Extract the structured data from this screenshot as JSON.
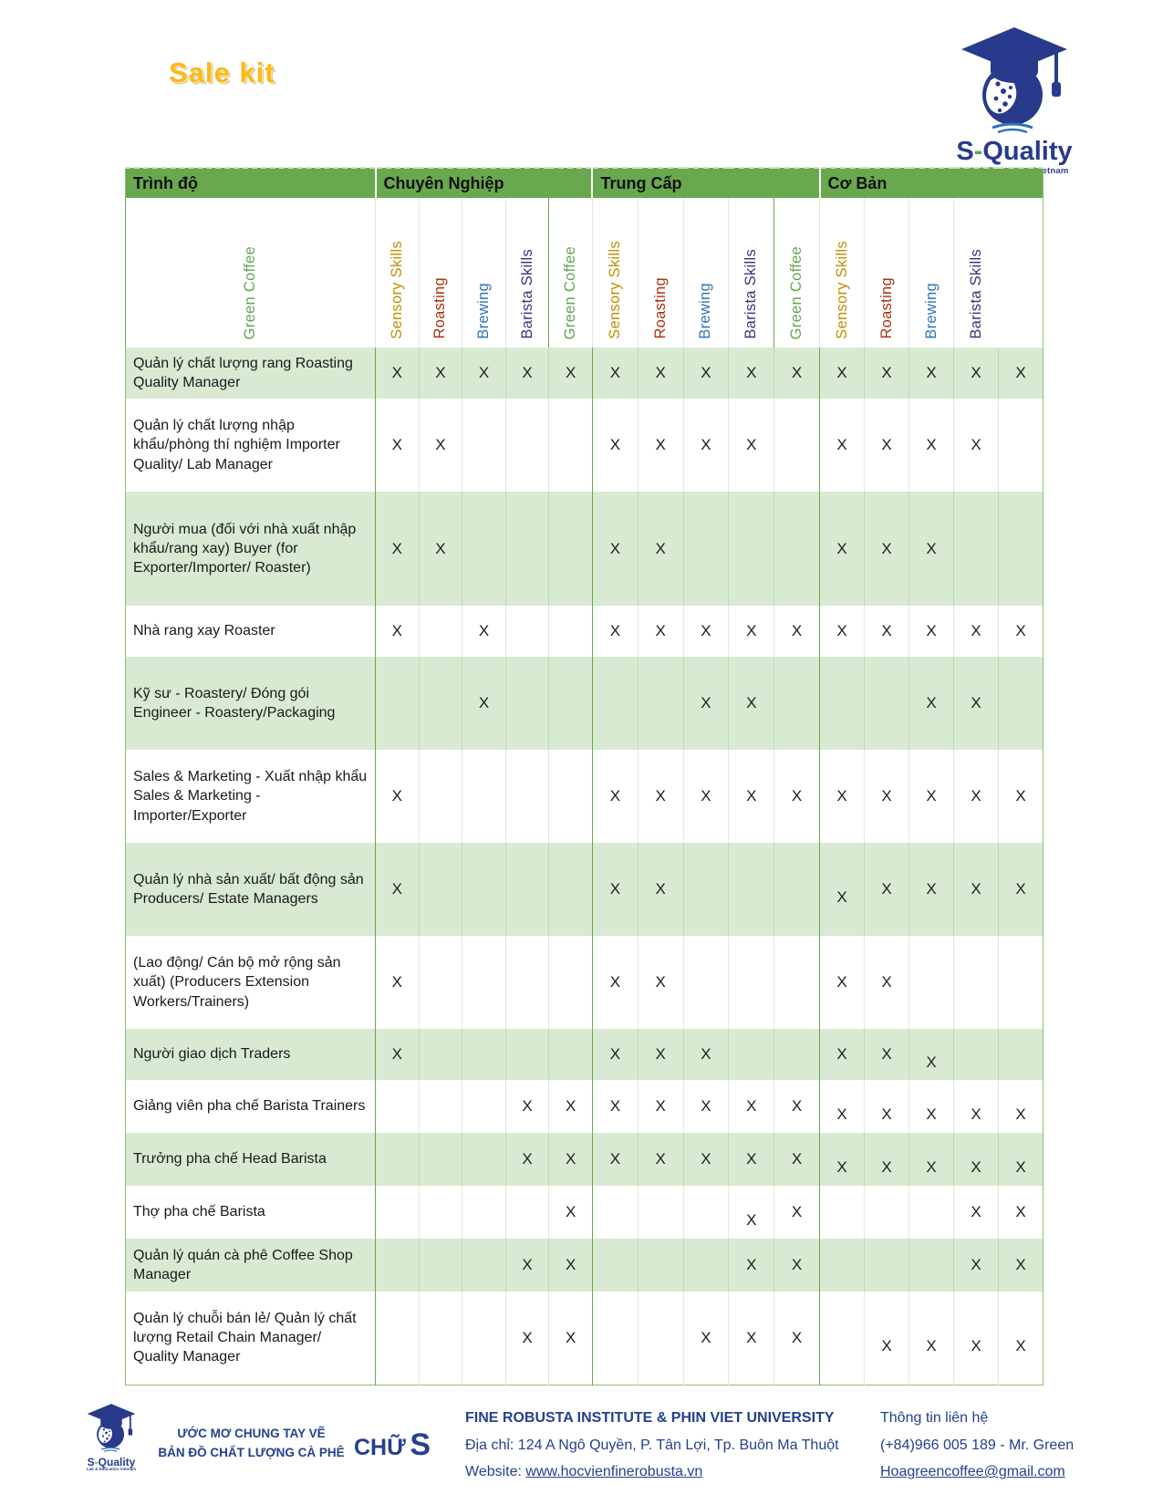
{
  "page": {
    "title": "Sale kit"
  },
  "logo": {
    "brand_s": "S",
    "brand_dash": "-",
    "brand_name": "Quality",
    "tagline": "Lab & Education Vietnam"
  },
  "table": {
    "level_header": "Trình độ",
    "sections": [
      {
        "label": "Chuyên Nghiệp"
      },
      {
        "label": "Trung Cấp"
      },
      {
        "label": "Cơ Bản"
      }
    ],
    "skills": [
      {
        "label": "Green Coffee",
        "color": "#62a64e"
      },
      {
        "label": "Sensory Skills",
        "color": "#bf9000"
      },
      {
        "label": "Roasting",
        "color": "#aa2e0e"
      },
      {
        "label": "Brewing",
        "color": "#2d74b5"
      },
      {
        "label": "Barista Skills",
        "color": "#3c3377"
      }
    ],
    "mark": "X",
    "rows": [
      {
        "vi": "Quản lý chất lượng rang",
        "en": "Roasting Quality Manager",
        "marks": [
          [
            1,
            1,
            1,
            1,
            1
          ],
          [
            1,
            1,
            1,
            1,
            1
          ],
          [
            1,
            1,
            1,
            1,
            1
          ]
        ]
      },
      {
        "vi": "Quản lý chất lượng nhập khẩu/phòng thí nghiệm",
        "en": "Importer Quality/ Lab Manager",
        "marks": [
          [
            1,
            1,
            0,
            0,
            0
          ],
          [
            1,
            1,
            1,
            1,
            0
          ],
          [
            1,
            1,
            1,
            1,
            0
          ]
        ]
      },
      {
        "vi": "Người mua (đối với nhà xuất nhập khẩu/rang xay)",
        "en": "Buyer (for Exporter/Importer/ Roaster)",
        "marks": [
          [
            1,
            1,
            0,
            0,
            0
          ],
          [
            1,
            1,
            0,
            0,
            0
          ],
          [
            1,
            1,
            1,
            0,
            0
          ]
        ]
      },
      {
        "vi": "Nhà rang xay",
        "en": "Roaster",
        "marks": [
          [
            1,
            0,
            1,
            0,
            0
          ],
          [
            1,
            1,
            1,
            1,
            1
          ],
          [
            1,
            1,
            1,
            1,
            1
          ]
        ]
      },
      {
        "vi": "Kỹ sư - Roastery/ Đóng gói",
        "en": "Engineer - Roastery/Packaging",
        "marks": [
          [
            0,
            0,
            1,
            0,
            0
          ],
          [
            0,
            0,
            1,
            1,
            0
          ],
          [
            0,
            0,
            1,
            1,
            0
          ]
        ]
      },
      {
        "vi": "Sales & Marketing - Xuất nhập khẩu",
        "en": "Sales & Marketing - Importer/Exporter",
        "marks": [
          [
            1,
            0,
            0,
            0,
            0
          ],
          [
            1,
            1,
            1,
            1,
            1
          ],
          [
            1,
            1,
            1,
            1,
            1
          ]
        ]
      },
      {
        "vi": "Quản lý nhà sản xuất/ bất động sản",
        "en": "Producers/ Estate Managers",
        "marks": [
          [
            1,
            0,
            0,
            0,
            0
          ],
          [
            1,
            1,
            0,
            0,
            0
          ],
          [
            2,
            1,
            1,
            1,
            1
          ]
        ]
      },
      {
        "vi": "(Lao động/ Cán bộ mở rộng sản xuất)",
        "en": "(Producers Extension Workers/Trainers)",
        "marks": [
          [
            1,
            0,
            0,
            0,
            0
          ],
          [
            1,
            1,
            0,
            0,
            0
          ],
          [
            1,
            1,
            0,
            0,
            0
          ]
        ]
      },
      {
        "vi": "Người giao dịch",
        "en": "Traders",
        "marks": [
          [
            1,
            0,
            0,
            0,
            0
          ],
          [
            1,
            1,
            1,
            0,
            0
          ],
          [
            1,
            1,
            2,
            0,
            0
          ]
        ]
      },
      {
        "vi": "Giảng viên pha chế",
        "en": "Barista Trainers",
        "marks": [
          [
            0,
            0,
            0,
            1,
            1
          ],
          [
            1,
            1,
            1,
            1,
            1
          ],
          [
            2,
            2,
            2,
            2,
            2
          ]
        ]
      },
      {
        "vi": "Trưởng pha chế",
        "en": "Head Barista",
        "marks": [
          [
            0,
            0,
            0,
            1,
            1
          ],
          [
            1,
            1,
            1,
            1,
            1
          ],
          [
            2,
            2,
            2,
            2,
            2
          ]
        ]
      },
      {
        "vi": "Thợ pha chế",
        "en": "Barista",
        "marks": [
          [
            0,
            0,
            0,
            0,
            1
          ],
          [
            0,
            0,
            0,
            2,
            1
          ],
          [
            0,
            0,
            0,
            1,
            1
          ]
        ]
      },
      {
        "vi": "Quản lý quán cà phê",
        "en": "Coffee Shop Manager",
        "marks": [
          [
            0,
            0,
            0,
            1,
            1
          ],
          [
            0,
            0,
            0,
            1,
            1
          ],
          [
            0,
            0,
            0,
            1,
            1
          ]
        ]
      },
      {
        "vi": "Quản lý chuỗi bán lẻ/ Quản lý chất lượng",
        "en": "Retail Chain Manager/ Quality Manager",
        "marks": [
          [
            0,
            0,
            0,
            1,
            1
          ],
          [
            0,
            0,
            1,
            1,
            1
          ],
          [
            0,
            2,
            2,
            2,
            2
          ]
        ]
      }
    ]
  },
  "footer": {
    "tagline_line1": "ƯỚC MƠ CHUNG TAY VẼ",
    "tagline_line2": "BẢN ĐỒ CHẤT LƯỢNG CÀ PHÊ",
    "chu": "CHỮ",
    "s": "S",
    "org": "FINE ROBUSTA INSTITUTE & PHIN VIET UNIVERSITY",
    "address": "Địa chỉ: 124 A Ngô Quyền, P. Tân Lợi, Tp. Buôn Ma Thuột",
    "website_label": "Website: ",
    "website_url": "www.hocvienfinerobusta.vn",
    "contact_title": "Thông tin liên hệ",
    "phone": "(+84)966 005 189 - Mr. Green",
    "email": "Hoagreencoffee@gmail.com"
  }
}
